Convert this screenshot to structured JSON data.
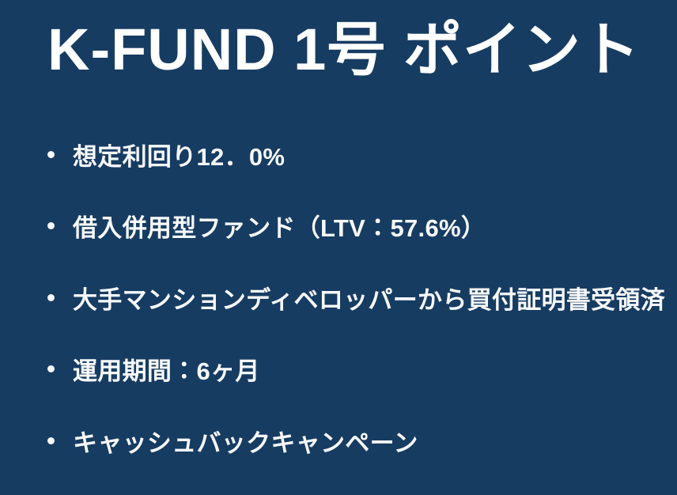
{
  "slide": {
    "title": "K-FUND 1号 ポイント",
    "bullets": [
      {
        "text": "想定利回り12．0%"
      },
      {
        "text": "借入併用型ファンド（LTV：57.6%）"
      },
      {
        "text": "大手マンションディベロッパーから買付証明書受領済"
      },
      {
        "text": "運用期間：6ヶ月"
      },
      {
        "text": "キャッシュバックキャンペーン"
      }
    ]
  },
  "colors": {
    "background": "#173c62",
    "title_text": "#ffffff",
    "body_text": "#f7f9fb"
  }
}
